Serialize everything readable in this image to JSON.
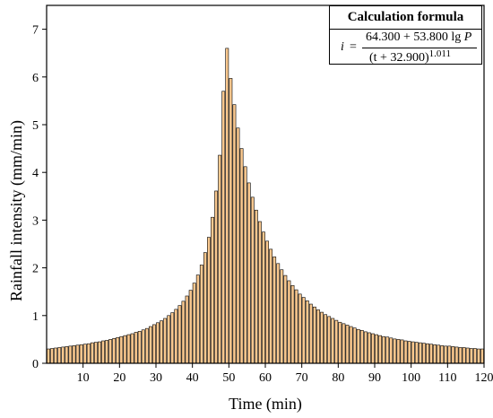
{
  "chart_data": {
    "type": "bar",
    "xlabel": "Time (min)",
    "ylabel": "Rainfall intensity (mm/min)",
    "xlim": [
      0,
      120
    ],
    "ylim": [
      0,
      7.5
    ],
    "x_ticks": [
      "10",
      "20",
      "30",
      "40",
      "50",
      "60",
      "70",
      "80",
      "90",
      "100",
      "110",
      "120"
    ],
    "y_ticks": [
      "0",
      "1",
      "2",
      "3",
      "4",
      "5",
      "6",
      "7"
    ],
    "bar_color": "#f9c88f",
    "bar_edge_color": "#000000",
    "grid": false,
    "x": [
      1,
      2,
      3,
      4,
      5,
      6,
      7,
      8,
      9,
      10,
      11,
      12,
      13,
      14,
      15,
      16,
      17,
      18,
      19,
      20,
      21,
      22,
      23,
      24,
      25,
      26,
      27,
      28,
      29,
      30,
      31,
      32,
      33,
      34,
      35,
      36,
      37,
      38,
      39,
      40,
      41,
      42,
      43,
      44,
      45,
      46,
      47,
      48,
      49,
      50,
      51,
      52,
      53,
      54,
      55,
      56,
      57,
      58,
      59,
      60,
      61,
      62,
      63,
      64,
      65,
      66,
      67,
      68,
      69,
      70,
      71,
      72,
      73,
      74,
      75,
      76,
      77,
      78,
      79,
      80,
      81,
      82,
      83,
      84,
      85,
      86,
      87,
      88,
      89,
      90,
      91,
      92,
      93,
      94,
      95,
      96,
      97,
      98,
      99,
      100,
      101,
      102,
      103,
      104,
      105,
      106,
      107,
      108,
      109,
      110,
      111,
      112,
      113,
      114,
      115,
      116,
      117,
      118,
      119,
      120
    ],
    "values": [
      0.3,
      0.31,
      0.32,
      0.33,
      0.34,
      0.35,
      0.36,
      0.37,
      0.38,
      0.39,
      0.4,
      0.41,
      0.43,
      0.44,
      0.45,
      0.47,
      0.48,
      0.5,
      0.52,
      0.54,
      0.56,
      0.58,
      0.6,
      0.62,
      0.65,
      0.67,
      0.7,
      0.73,
      0.77,
      0.81,
      0.85,
      0.89,
      0.94,
      1.0,
      1.06,
      1.13,
      1.21,
      1.3,
      1.41,
      1.53,
      1.68,
      1.85,
      2.06,
      2.32,
      2.64,
      3.06,
      3.61,
      4.36,
      5.7,
      6.6,
      5.97,
      5.42,
      4.93,
      4.5,
      4.12,
      3.78,
      3.48,
      3.21,
      2.97,
      2.75,
      2.56,
      2.39,
      2.23,
      2.09,
      1.96,
      1.84,
      1.73,
      1.63,
      1.54,
      1.45,
      1.38,
      1.31,
      1.24,
      1.18,
      1.12,
      1.07,
      1.02,
      0.98,
      0.94,
      0.9,
      0.86,
      0.83,
      0.8,
      0.77,
      0.74,
      0.71,
      0.69,
      0.66,
      0.64,
      0.62,
      0.6,
      0.58,
      0.56,
      0.55,
      0.53,
      0.51,
      0.5,
      0.49,
      0.47,
      0.46,
      0.45,
      0.44,
      0.43,
      0.42,
      0.41,
      0.4,
      0.39,
      0.38,
      0.37,
      0.36,
      0.36,
      0.35,
      0.34,
      0.33,
      0.33,
      0.32,
      0.31,
      0.31,
      0.3,
      0.3
    ]
  },
  "formula": {
    "title": "Calculation formula",
    "lhs": "i",
    "equals": "=",
    "numerator_text": "64.300 + 53.800 lg ",
    "numerator_var": "P",
    "denominator_text": "(t + 32.900)",
    "exponent": "1.011"
  }
}
